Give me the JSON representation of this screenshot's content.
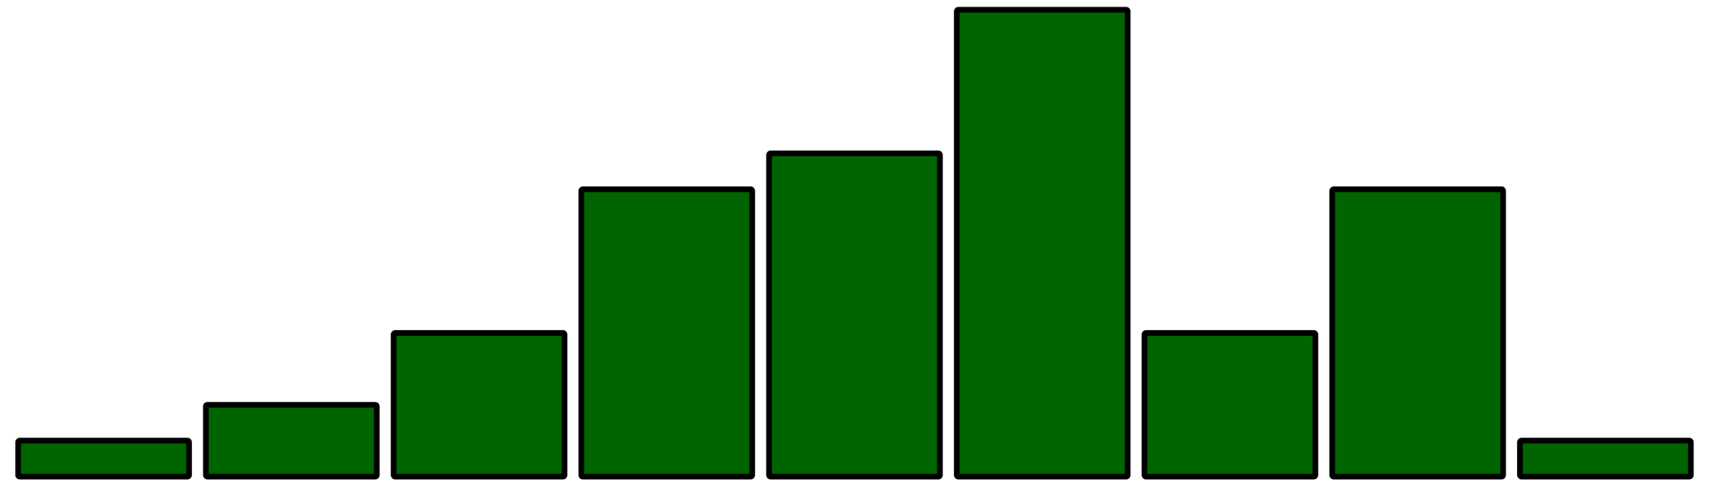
{
  "chart_data": {
    "type": "bar",
    "categories": [
      "",
      "",
      "",
      "",
      "",
      "",
      "",
      "",
      ""
    ],
    "values": [
      1,
      2,
      4,
      8,
      9,
      13,
      4,
      8,
      1
    ],
    "title": "",
    "xlabel": "",
    "ylabel": "",
    "ylim": [
      0,
      13
    ],
    "grid": false,
    "legend": "none",
    "colors": {
      "bar_fill": "#006400",
      "bar_stroke": "#000000",
      "background": "#ffffff"
    }
  }
}
